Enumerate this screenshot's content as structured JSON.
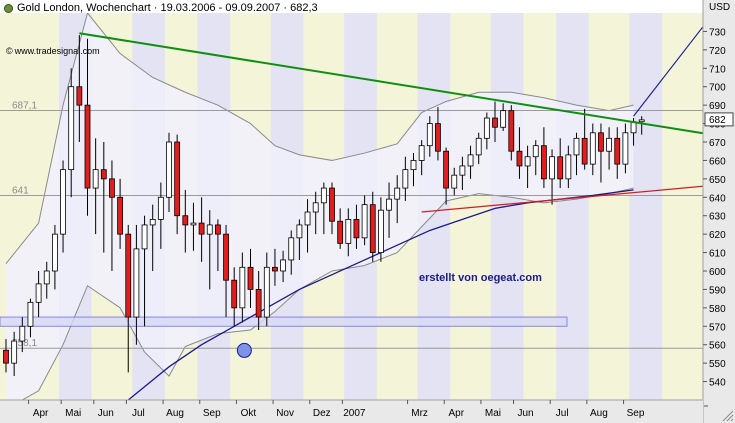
{
  "header": {
    "title": "Gold London, Wochenchart · 19.03.2006 - 09.09.2007 · 682,3",
    "watermark": "www.tradesignal.com",
    "currency": "USD",
    "annotation": "erstellt von oegeat.com"
  },
  "colors": {
    "rising_candle": "#ffffff",
    "falling_candle": "#e01e1e",
    "resistance_line": "#0f8f0f",
    "support_line": "#d21e1e",
    "moving_average": "#1a1a8c",
    "bollinger": "#8a8a8a",
    "zone": "#d8d8f8"
  },
  "chart_data": {
    "type": "candlestick",
    "title": "Gold London, Wochenchart · 19.03.2006 - 09.09.2007 · 682,3",
    "y_unit": "USD",
    "ylim": [
      530,
      740
    ],
    "y_ticks": [
      540,
      550,
      560,
      570,
      580,
      590,
      600,
      610,
      620,
      630,
      640,
      650,
      660,
      670,
      680,
      690,
      700,
      710,
      720,
      730
    ],
    "x_ticks": [
      "Apr",
      "Mai",
      "Jun",
      "Jul",
      "Aug",
      "Sep",
      "Okt",
      "Nov",
      "Dez",
      "2007",
      "Mrz",
      "Apr",
      "Mai",
      "Jun",
      "Jul",
      "Aug",
      "Sep"
    ],
    "last_value": 682,
    "reference_levels": [
      {
        "label": "687,1",
        "value": 687.1
      },
      {
        "label": "641",
        "value": 641
      },
      {
        "label": "558,1",
        "value": 558.1
      }
    ],
    "weeks": 79,
    "candles_ohlc": [
      [
        557,
        563,
        545,
        550
      ],
      [
        550,
        567,
        543,
        562
      ],
      [
        562,
        575,
        556,
        570
      ],
      [
        570,
        585,
        564,
        583
      ],
      [
        583,
        600,
        575,
        593
      ],
      [
        593,
        605,
        585,
        600
      ],
      [
        600,
        625,
        590,
        620
      ],
      [
        620,
        660,
        610,
        655
      ],
      [
        655,
        710,
        640,
        700
      ],
      [
        700,
        728,
        670,
        690
      ],
      [
        690,
        726,
        630,
        645
      ],
      [
        645,
        672,
        620,
        655
      ],
      [
        655,
        670,
        610,
        650
      ],
      [
        650,
        660,
        600,
        640
      ],
      [
        640,
        650,
        612,
        620
      ],
      [
        620,
        625,
        545,
        575
      ],
      [
        575,
        625,
        560,
        612
      ],
      [
        612,
        630,
        570,
        625
      ],
      [
        625,
        636,
        600,
        628
      ],
      [
        628,
        648,
        612,
        640
      ],
      [
        640,
        675,
        632,
        670
      ],
      [
        670,
        674,
        620,
        630
      ],
      [
        630,
        644,
        610,
        625
      ],
      [
        625,
        637,
        611,
        626
      ],
      [
        626,
        640,
        605,
        620
      ],
      [
        620,
        633,
        590,
        625
      ],
      [
        625,
        628,
        600,
        620
      ],
      [
        620,
        625,
        575,
        595
      ],
      [
        595,
        602,
        570,
        580
      ],
      [
        580,
        610,
        572,
        602
      ],
      [
        602,
        612,
        580,
        590
      ],
      [
        590,
        600,
        568,
        575
      ],
      [
        575,
        610,
        570,
        602
      ],
      [
        602,
        612,
        592,
        600
      ],
      [
        600,
        611,
        594,
        606
      ],
      [
        606,
        622,
        598,
        618
      ],
      [
        618,
        628,
        606,
        625
      ],
      [
        625,
        639,
        610,
        632
      ],
      [
        632,
        643,
        620,
        637
      ],
      [
        637,
        648,
        620,
        645
      ],
      [
        645,
        648,
        620,
        627
      ],
      [
        627,
        634,
        612,
        615
      ],
      [
        615,
        634,
        608,
        628
      ],
      [
        628,
        636,
        612,
        618
      ],
      [
        618,
        641,
        614,
        636
      ],
      [
        636,
        643,
        605,
        610
      ],
      [
        610,
        640,
        605,
        633
      ],
      [
        633,
        648,
        618,
        639
      ],
      [
        639,
        652,
        626,
        645
      ],
      [
        645,
        662,
        638,
        655
      ],
      [
        655,
        664,
        646,
        660
      ],
      [
        660,
        671,
        652,
        668
      ],
      [
        668,
        684,
        662,
        680
      ],
      [
        680,
        689,
        660,
        665
      ],
      [
        665,
        667,
        636,
        645
      ],
      [
        645,
        656,
        641,
        652
      ],
      [
        652,
        662,
        644,
        657
      ],
      [
        657,
        668,
        650,
        663
      ],
      [
        663,
        675,
        658,
        672
      ],
      [
        672,
        686,
        666,
        683
      ],
      [
        683,
        692,
        670,
        678
      ],
      [
        678,
        691,
        676,
        687
      ],
      [
        687,
        690,
        660,
        665
      ],
      [
        665,
        678,
        650,
        657
      ],
      [
        657,
        668,
        645,
        662
      ],
      [
        662,
        671,
        652,
        668
      ],
      [
        668,
        678,
        645,
        650
      ],
      [
        650,
        666,
        636,
        662
      ],
      [
        662,
        672,
        645,
        650
      ],
      [
        650,
        668,
        645,
        663
      ],
      [
        663,
        675,
        652,
        672
      ],
      [
        672,
        688,
        655,
        658
      ],
      [
        658,
        680,
        652,
        675
      ],
      [
        675,
        680,
        648,
        665
      ],
      [
        665,
        678,
        655,
        672
      ],
      [
        672,
        678,
        650,
        658
      ],
      [
        658,
        680,
        653,
        675
      ],
      [
        675,
        683,
        668,
        681
      ],
      [
        681,
        684,
        674,
        682
      ]
    ],
    "bollinger_upper": [
      [
        0,
        604
      ],
      [
        4,
        626
      ],
      [
        7,
        690
      ],
      [
        10,
        740
      ],
      [
        14,
        718
      ],
      [
        18,
        705
      ],
      [
        22,
        697
      ],
      [
        26,
        690
      ],
      [
        30,
        680
      ],
      [
        33,
        668
      ],
      [
        36,
        663
      ],
      [
        40,
        660
      ],
      [
        44,
        664
      ],
      [
        48,
        669
      ],
      [
        51,
        686
      ],
      [
        54,
        692
      ],
      [
        58,
        697
      ],
      [
        62,
        697
      ],
      [
        66,
        694
      ],
      [
        70,
        690
      ],
      [
        74,
        687
      ],
      [
        77,
        690
      ]
    ],
    "bollinger_lower": [
      [
        0,
        525
      ],
      [
        4,
        535
      ],
      [
        7,
        560
      ],
      [
        10,
        592
      ],
      [
        14,
        580
      ],
      [
        17,
        556
      ],
      [
        20,
        543
      ],
      [
        22,
        559
      ],
      [
        26,
        566
      ],
      [
        30,
        568
      ],
      [
        33,
        578
      ],
      [
        36,
        590
      ],
      [
        40,
        600
      ],
      [
        44,
        603
      ],
      [
        48,
        610
      ],
      [
        51,
        624
      ],
      [
        54,
        638
      ],
      [
        58,
        642
      ],
      [
        62,
        640
      ],
      [
        66,
        637
      ],
      [
        70,
        639
      ],
      [
        74,
        642
      ],
      [
        77,
        645
      ]
    ],
    "moving_average_40": [
      [
        15,
        530
      ],
      [
        20,
        548
      ],
      [
        24,
        560
      ],
      [
        28,
        570
      ],
      [
        32,
        580
      ],
      [
        36,
        590
      ],
      [
        40,
        598
      ],
      [
        44,
        606
      ],
      [
        48,
        614
      ],
      [
        52,
        622
      ],
      [
        56,
        628
      ],
      [
        60,
        634
      ],
      [
        64,
        637
      ],
      [
        68,
        639
      ],
      [
        72,
        641
      ],
      [
        77,
        644
      ]
    ],
    "resistance_trend": [
      [
        9,
        729
      ],
      [
        88,
        673
      ]
    ],
    "support_trend": [
      [
        51,
        632
      ],
      [
        88,
        647
      ]
    ],
    "projection_arrow": [
      [
        77,
        684
      ],
      [
        87,
        741
      ]
    ],
    "highlight_zone": [
      570,
      575
    ],
    "marker_circle": [
      [
        29,
        558
      ]
    ],
    "shaded_periods": [
      [
        7,
        11
      ],
      [
        16,
        20
      ],
      [
        24,
        28
      ],
      [
        33,
        37
      ],
      [
        42,
        46
      ],
      [
        51,
        55
      ],
      [
        60,
        64
      ],
      [
        68,
        72
      ],
      [
        77,
        81
      ]
    ]
  }
}
